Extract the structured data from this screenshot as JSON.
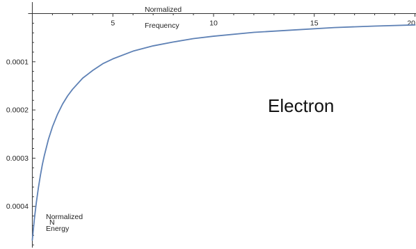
{
  "chart_data": {
    "type": "line",
    "xlabel_lines": [
      "Normalized",
      "Frequency"
    ],
    "ylabel_lines": [
      "Normalized",
      "N",
      "Energy"
    ],
    "annotation": "Electron",
    "xlim": [
      1,
      20
    ],
    "ylim": [
      0,
      0.00048
    ],
    "y_axis_reversed": true,
    "x_axis_position": "top",
    "grid": false,
    "x_minor_step": 1,
    "y_minor_step": 2e-05,
    "x_ticks": [
      {
        "value": 5,
        "label": "5"
      },
      {
        "value": 10,
        "label": "10"
      },
      {
        "value": 15,
        "label": "15"
      },
      {
        "value": 20,
        "label": "20"
      }
    ],
    "y_ticks": [
      {
        "value": 0.0001,
        "label": "0.0001"
      },
      {
        "value": 0.0002,
        "label": "0.0002"
      },
      {
        "value": 0.0003,
        "label": "0.0003"
      },
      {
        "value": 0.0004,
        "label": "0.0004"
      }
    ],
    "series": [
      {
        "color": "#5e81b5",
        "x": [
          1,
          1.1,
          1.2,
          1.3,
          1.4,
          1.5,
          1.6,
          1.8,
          2,
          2.25,
          2.5,
          2.75,
          3,
          3.5,
          4,
          4.5,
          5,
          6,
          7,
          8,
          9,
          10,
          12,
          14,
          16,
          18,
          20
        ],
        "y": [
          0.00047,
          0.000427,
          0.000392,
          0.000362,
          0.000336,
          0.000313,
          0.000294,
          0.000261,
          0.000235,
          0.000209,
          0.000188,
          0.000171,
          0.000157,
          0.000134,
          0.000118,
          0.000104,
          9.4e-05,
          7.8e-05,
          6.7e-05,
          5.9e-05,
          5.2e-05,
          4.7e-05,
          3.9e-05,
          3.4e-05,
          2.9e-05,
          2.6e-05,
          2.35e-05
        ]
      }
    ]
  }
}
